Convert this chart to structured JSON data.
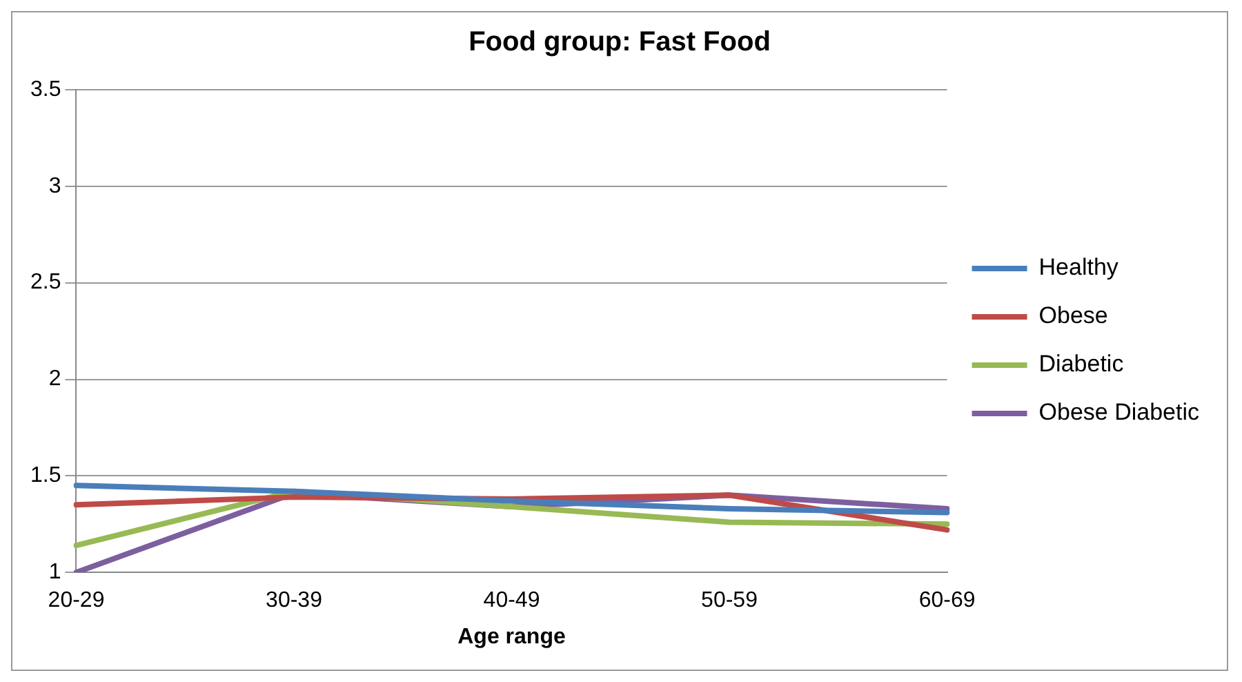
{
  "chart_data": {
    "type": "line",
    "title": "Food group: Fast Food",
    "xlabel": "Age range",
    "categories": [
      "20-29",
      "30-39",
      "40-49",
      "50-59",
      "60-69"
    ],
    "series": [
      {
        "name": "Healthy",
        "color": "#4a7ebb",
        "values": [
          1.45,
          1.42,
          1.37,
          1.33,
          1.31
        ]
      },
      {
        "name": "Obese",
        "color": "#be4b48",
        "values": [
          1.35,
          1.39,
          1.38,
          1.4,
          1.22
        ]
      },
      {
        "name": "Diabetic",
        "color": "#98b954",
        "values": [
          1.14,
          1.42,
          1.34,
          1.26,
          1.25
        ]
      },
      {
        "name": "Obese Diabetic",
        "color": "#7d5fa0",
        "values": [
          1.0,
          1.41,
          1.34,
          1.4,
          1.33
        ]
      }
    ],
    "ylim": [
      1,
      3.5
    ],
    "yticks": [
      1,
      1.5,
      2,
      2.5,
      3,
      3.5
    ],
    "grid": "y",
    "legend": "right",
    "marker": "none",
    "line_style": "solid"
  }
}
